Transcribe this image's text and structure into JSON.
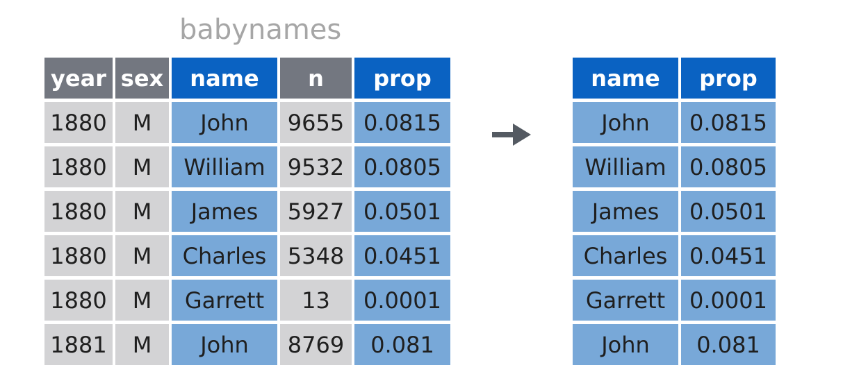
{
  "title": "babynames",
  "source_table": {
    "columns": [
      {
        "label": "year",
        "highlight": false
      },
      {
        "label": "sex",
        "highlight": false
      },
      {
        "label": "name",
        "highlight": true
      },
      {
        "label": "n",
        "highlight": false
      },
      {
        "label": "prop",
        "highlight": true
      }
    ],
    "rows": [
      [
        "1880",
        "M",
        "John",
        "9655",
        "0.0815"
      ],
      [
        "1880",
        "M",
        "William",
        "9532",
        "0.0805"
      ],
      [
        "1880",
        "M",
        "James",
        "5927",
        "0.0501"
      ],
      [
        "1880",
        "M",
        "Charles",
        "5348",
        "0.0451"
      ],
      [
        "1880",
        "M",
        "Garrett",
        "13",
        "0.0001"
      ],
      [
        "1881",
        "M",
        "John",
        "8769",
        "0.081"
      ]
    ]
  },
  "result_table": {
    "columns": [
      {
        "label": "name",
        "highlight": true
      },
      {
        "label": "prop",
        "highlight": true
      }
    ],
    "rows": [
      [
        "John",
        "0.0815"
      ],
      [
        "William",
        "0.0805"
      ],
      [
        "James",
        "0.0501"
      ],
      [
        "Charles",
        "0.0451"
      ],
      [
        "Garrett",
        "0.0001"
      ],
      [
        "John",
        "0.081"
      ]
    ]
  },
  "colors": {
    "header_gray": "#737780",
    "header_blue": "#0a62c2",
    "cell_gray": "#d3d3d5",
    "cell_blue": "#78a8d8",
    "arrow": "#545a62",
    "title": "#a6a6a6"
  },
  "arrow_icon": "right-arrow-icon"
}
